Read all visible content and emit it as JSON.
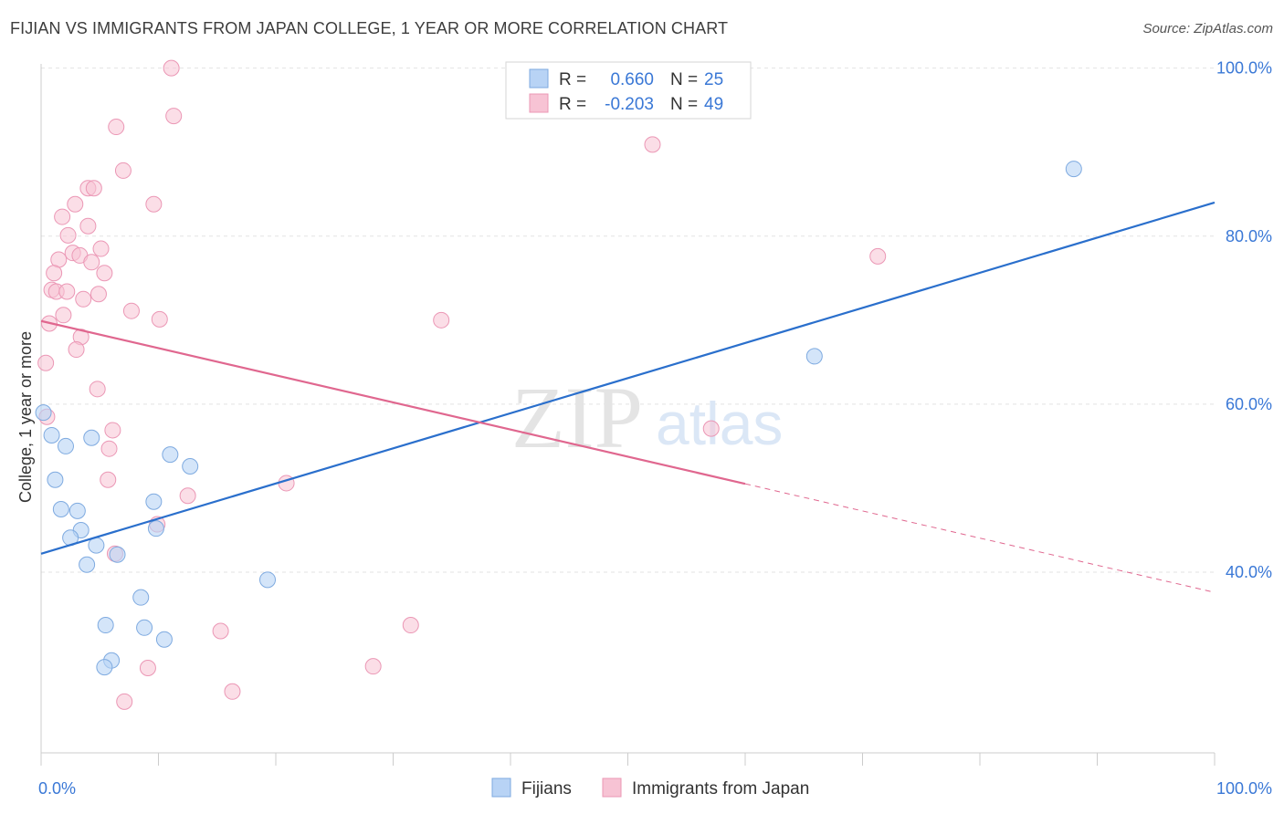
{
  "chart_data": {
    "type": "scatter",
    "title": "FIJIAN VS IMMIGRANTS FROM JAPAN COLLEGE, 1 YEAR OR MORE CORRELATION CHART",
    "source": "Source: ZipAtlas.com",
    "xlabel": "",
    "ylabel": "College, 1 year or more",
    "xlim": [
      0,
      100
    ],
    "ylim": [
      18.5,
      100.5
    ],
    "x_tick_labels": [
      {
        "value": 0,
        "label": "0.0%"
      },
      {
        "value": 100,
        "label": "100.0%"
      }
    ],
    "y_tick_labels": [
      {
        "value": 40,
        "label": "40.0%"
      },
      {
        "value": 60,
        "label": "60.0%"
      },
      {
        "value": 80,
        "label": "80.0%"
      },
      {
        "value": 100,
        "label": "100.0%"
      }
    ],
    "grid": true,
    "watermark": {
      "zip": "ZIP",
      "atlas": "atlas"
    },
    "legend": {
      "position": "top-center",
      "rows": [
        {
          "r_label": "R =",
          "r_value": "0.660",
          "n_label": "N =",
          "n_value": "25"
        },
        {
          "r_label": "R =",
          "r_value": "-0.203",
          "n_label": "N =",
          "n_value": "49"
        }
      ]
    },
    "bottom_legend": [
      "Fijians",
      "Immigrants from Japan"
    ],
    "colors": {
      "fijians_fill": "#b8d3f5",
      "fijians_stroke": "#7eaae0",
      "fijians_line": "#2a6fcc",
      "japan_fill": "#f7c3d4",
      "japan_stroke": "#eb97b5",
      "japan_line": "#e0678f",
      "value_text": "#3a78d6",
      "tick_text": "#3a78d6"
    },
    "series": [
      {
        "name": "Fijians",
        "trend": {
          "x0": 0,
          "y0": 42.2,
          "x1": 100,
          "y1": 84.0
        },
        "points": [
          [
            0.2,
            59.0
          ],
          [
            0.9,
            56.3
          ],
          [
            2.1,
            55.0
          ],
          [
            1.2,
            51.0
          ],
          [
            1.7,
            47.5
          ],
          [
            3.1,
            47.3
          ],
          [
            3.4,
            45.0
          ],
          [
            2.5,
            44.1
          ],
          [
            4.7,
            43.2
          ],
          [
            3.9,
            40.9
          ],
          [
            6.5,
            42.1
          ],
          [
            4.3,
            56.0
          ],
          [
            9.6,
            48.4
          ],
          [
            9.8,
            45.2
          ],
          [
            11.0,
            54.0
          ],
          [
            12.7,
            52.6
          ],
          [
            19.3,
            39.1
          ],
          [
            8.5,
            37.0
          ],
          [
            5.5,
            33.7
          ],
          [
            8.8,
            33.4
          ],
          [
            10.5,
            32.0
          ],
          [
            6.0,
            29.5
          ],
          [
            5.4,
            28.7
          ],
          [
            65.9,
            65.7
          ],
          [
            88.0,
            88.0
          ]
        ]
      },
      {
        "name": "Immigrants from Japan",
        "trend": {
          "x0": 0,
          "y0": 69.9,
          "x1": 100,
          "y1": 37.6,
          "solid_until": 60
        },
        "points": [
          [
            11.1,
            100.0
          ],
          [
            11.3,
            94.3
          ],
          [
            6.4,
            93.0
          ],
          [
            7.0,
            87.8
          ],
          [
            4.0,
            85.7
          ],
          [
            4.5,
            85.7
          ],
          [
            9.6,
            83.8
          ],
          [
            2.9,
            83.8
          ],
          [
            1.8,
            82.3
          ],
          [
            4.0,
            81.2
          ],
          [
            2.3,
            80.1
          ],
          [
            5.1,
            78.5
          ],
          [
            2.7,
            78.0
          ],
          [
            3.3,
            77.7
          ],
          [
            1.5,
            77.2
          ],
          [
            4.3,
            76.9
          ],
          [
            1.1,
            75.6
          ],
          [
            5.4,
            75.6
          ],
          [
            0.9,
            73.6
          ],
          [
            1.3,
            73.4
          ],
          [
            2.2,
            73.4
          ],
          [
            4.9,
            73.1
          ],
          [
            3.6,
            72.5
          ],
          [
            7.7,
            71.1
          ],
          [
            1.9,
            70.6
          ],
          [
            10.1,
            70.1
          ],
          [
            34.1,
            70.0
          ],
          [
            0.7,
            69.6
          ],
          [
            3.4,
            68.0
          ],
          [
            3.0,
            66.5
          ],
          [
            0.4,
            64.9
          ],
          [
            4.8,
            61.8
          ],
          [
            0.5,
            58.5
          ],
          [
            6.1,
            56.9
          ],
          [
            57.1,
            57.1
          ],
          [
            5.8,
            54.7
          ],
          [
            5.7,
            51.0
          ],
          [
            20.9,
            50.6
          ],
          [
            12.5,
            49.1
          ],
          [
            9.9,
            45.7
          ],
          [
            6.3,
            42.2
          ],
          [
            52.1,
            90.9
          ],
          [
            71.3,
            77.6
          ],
          [
            15.3,
            33.0
          ],
          [
            31.5,
            33.7
          ],
          [
            9.1,
            28.6
          ],
          [
            28.3,
            28.8
          ],
          [
            16.3,
            25.8
          ],
          [
            7.1,
            24.6
          ]
        ]
      }
    ]
  }
}
